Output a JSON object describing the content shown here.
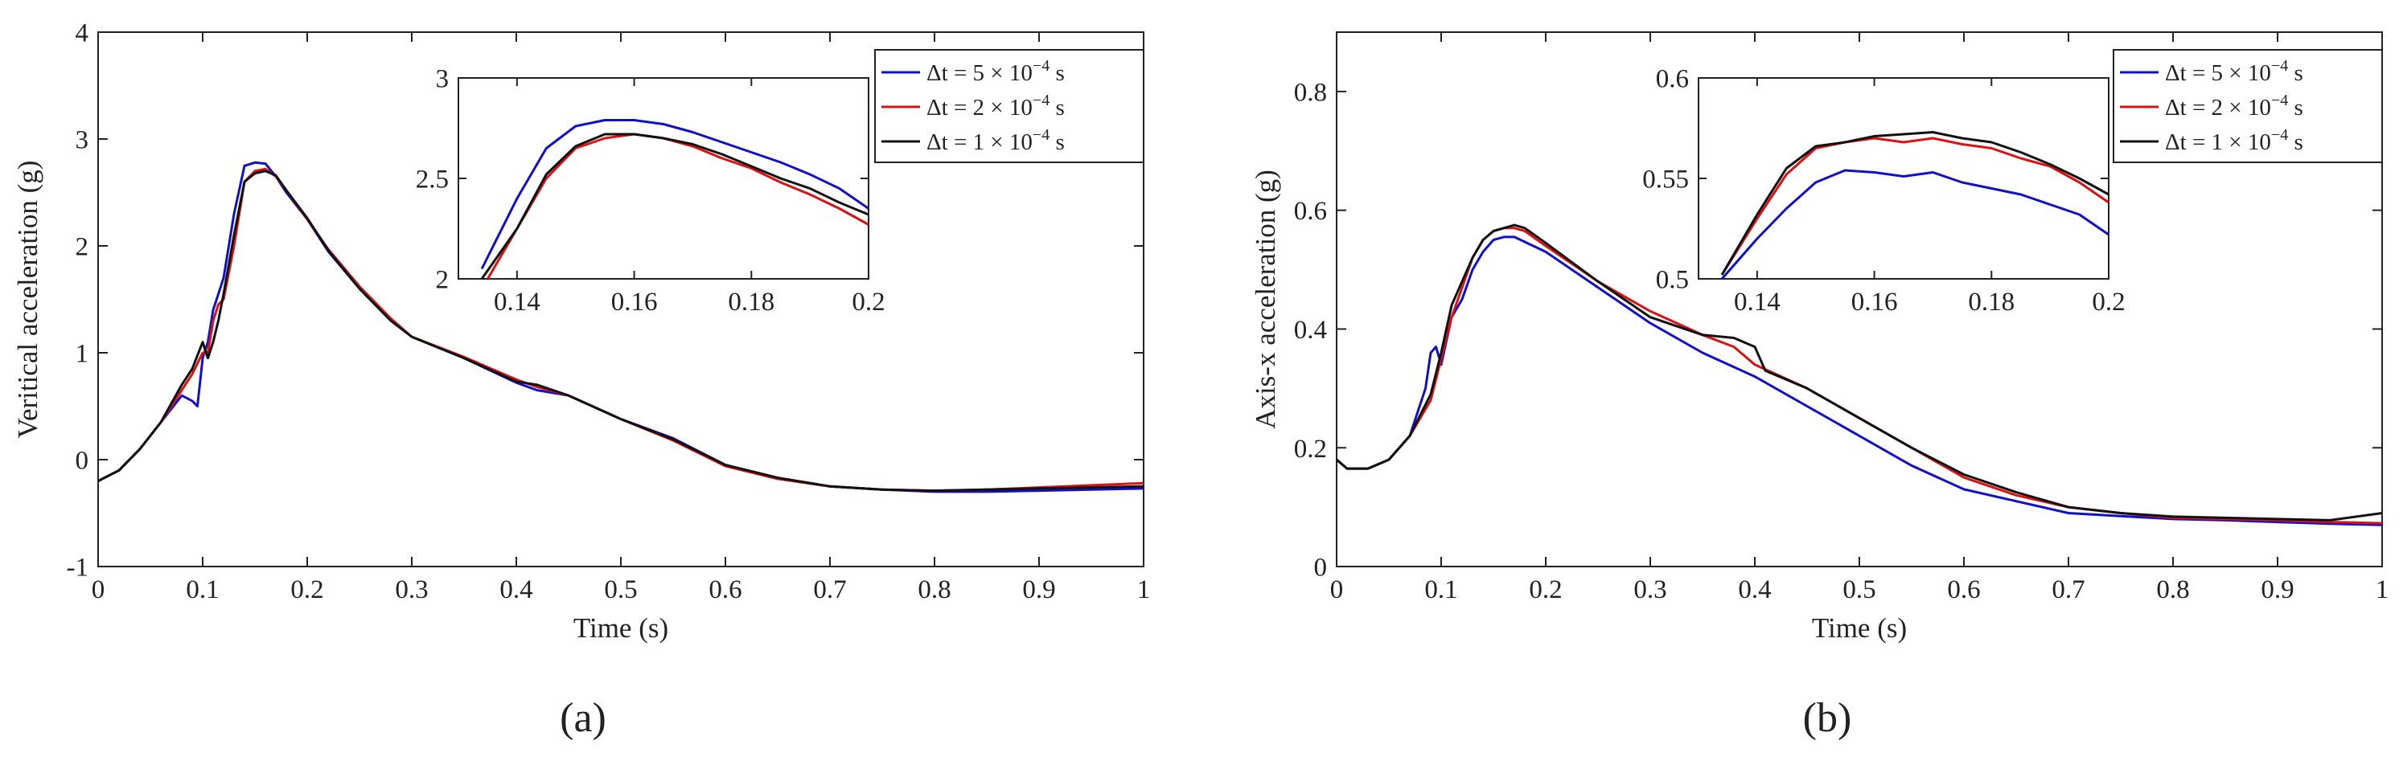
{
  "chart_data": [
    {
      "id": "a",
      "type": "line",
      "panel_label": "(a)",
      "xlabel": "Time (s)",
      "ylabel": "Veritical acceleration (g)",
      "xlim": [
        0,
        1
      ],
      "ylim": [
        -1,
        4
      ],
      "xticks": [
        0,
        0.1,
        0.2,
        0.3,
        0.4,
        0.5,
        0.6,
        0.7,
        0.8,
        0.9,
        1
      ],
      "xtick_labels": [
        "0",
        "0.1",
        "0.2",
        "0.3",
        "0.4",
        "0.5",
        "0.6",
        "0.7",
        "0.8",
        "0.9",
        "1"
      ],
      "yticks": [
        -1,
        0,
        1,
        2,
        3,
        4
      ],
      "ytick_labels": [
        "-1",
        "0",
        "1",
        "2",
        "3",
        "4"
      ],
      "grid": false,
      "legend_position": "top-right",
      "series": [
        {
          "name": "Δt = 5 × 10⁻⁴ s",
          "legend": {
            "pre": "Δt = 5 × 10",
            "sup": "−4",
            "post": " s"
          },
          "color": "#1010cc",
          "x": [
            0,
            0.02,
            0.04,
            0.06,
            0.08,
            0.09,
            0.095,
            0.1,
            0.105,
            0.11,
            0.12,
            0.13,
            0.14,
            0.15,
            0.16,
            0.17,
            0.18,
            0.2,
            0.22,
            0.25,
            0.28,
            0.3,
            0.35,
            0.4,
            0.42,
            0.45,
            0.5,
            0.55,
            0.6,
            0.65,
            0.7,
            0.75,
            0.8,
            0.85,
            0.9,
            0.95,
            1.0
          ],
          "y": [
            -0.2,
            -0.1,
            0.1,
            0.35,
            0.6,
            0.55,
            0.5,
            0.95,
            1.1,
            1.4,
            1.7,
            2.3,
            2.75,
            2.78,
            2.77,
            2.65,
            2.5,
            2.25,
            1.95,
            1.6,
            1.3,
            1.15,
            0.95,
            0.72,
            0.65,
            0.6,
            0.38,
            0.2,
            -0.05,
            -0.17,
            -0.25,
            -0.28,
            -0.3,
            -0.3,
            -0.29,
            -0.28,
            -0.27
          ]
        },
        {
          "name": "Δt = 2 × 10⁻⁴ s",
          "legend": {
            "pre": "Δt = 2 × 10",
            "sup": "−4",
            "post": " s"
          },
          "color": "#dd1111",
          "x": [
            0,
            0.02,
            0.04,
            0.06,
            0.08,
            0.09,
            0.1,
            0.105,
            0.11,
            0.115,
            0.12,
            0.13,
            0.14,
            0.15,
            0.16,
            0.17,
            0.18,
            0.2,
            0.22,
            0.25,
            0.28,
            0.3,
            0.35,
            0.4,
            0.42,
            0.45,
            0.5,
            0.55,
            0.6,
            0.65,
            0.7,
            0.75,
            0.8,
            0.85,
            0.9,
            0.95,
            1.0
          ],
          "y": [
            -0.2,
            -0.1,
            0.1,
            0.35,
            0.65,
            0.8,
            1.0,
            1.0,
            1.3,
            1.45,
            1.5,
            2.0,
            2.6,
            2.7,
            2.72,
            2.65,
            2.52,
            2.25,
            1.97,
            1.62,
            1.32,
            1.15,
            0.96,
            0.75,
            0.68,
            0.6,
            0.38,
            0.18,
            -0.06,
            -0.18,
            -0.25,
            -0.28,
            -0.29,
            -0.28,
            -0.26,
            -0.24,
            -0.22
          ]
        },
        {
          "name": "Δt = 1 × 10⁻⁴ s",
          "legend": {
            "pre": "Δt = 1 × 10",
            "sup": "−4",
            "post": " s"
          },
          "color": "#111111",
          "x": [
            0,
            0.02,
            0.04,
            0.06,
            0.08,
            0.09,
            0.1,
            0.105,
            0.11,
            0.115,
            0.12,
            0.13,
            0.14,
            0.15,
            0.16,
            0.17,
            0.18,
            0.2,
            0.22,
            0.25,
            0.28,
            0.3,
            0.35,
            0.4,
            0.42,
            0.45,
            0.5,
            0.55,
            0.6,
            0.65,
            0.7,
            0.75,
            0.8,
            0.85,
            0.9,
            0.95,
            1.0
          ],
          "y": [
            -0.2,
            -0.1,
            0.1,
            0.35,
            0.7,
            0.85,
            1.1,
            0.95,
            1.1,
            1.3,
            1.55,
            2.1,
            2.6,
            2.68,
            2.7,
            2.66,
            2.52,
            2.26,
            1.96,
            1.6,
            1.3,
            1.15,
            0.95,
            0.73,
            0.7,
            0.6,
            0.38,
            0.19,
            -0.05,
            -0.17,
            -0.25,
            -0.28,
            -0.29,
            -0.28,
            -0.27,
            -0.26,
            -0.25
          ]
        }
      ],
      "inset": {
        "xlim": [
          0.13,
          0.2
        ],
        "ylim": [
          2,
          3
        ],
        "xticks": [
          0.14,
          0.16,
          0.18,
          0.2
        ],
        "xtick_labels": [
          "0.14",
          "0.16",
          "0.18",
          "0.2"
        ],
        "yticks": [
          2,
          2.5,
          3
        ],
        "ytick_labels": [
          "2",
          "2.5",
          "3"
        ],
        "series": [
          {
            "color": "#1010cc",
            "x": [
              0.134,
              0.14,
              0.145,
              0.15,
              0.155,
              0.16,
              0.165,
              0.17,
              0.175,
              0.18,
              0.185,
              0.19,
              0.195,
              0.2
            ],
            "y": [
              2.05,
              2.4,
              2.65,
              2.76,
              2.79,
              2.79,
              2.77,
              2.73,
              2.68,
              2.63,
              2.58,
              2.52,
              2.45,
              2.35
            ]
          },
          {
            "color": "#dd1111",
            "x": [
              0.135,
              0.14,
              0.145,
              0.15,
              0.155,
              0.16,
              0.165,
              0.17,
              0.175,
              0.18,
              0.185,
              0.19,
              0.195,
              0.2
            ],
            "y": [
              2.0,
              2.25,
              2.5,
              2.65,
              2.7,
              2.72,
              2.7,
              2.66,
              2.6,
              2.55,
              2.48,
              2.42,
              2.35,
              2.27
            ]
          },
          {
            "color": "#111111",
            "x": [
              0.134,
              0.14,
              0.145,
              0.15,
              0.155,
              0.16,
              0.165,
              0.17,
              0.175,
              0.18,
              0.185,
              0.19,
              0.195,
              0.2
            ],
            "y": [
              2.0,
              2.25,
              2.52,
              2.66,
              2.72,
              2.72,
              2.7,
              2.67,
              2.62,
              2.56,
              2.5,
              2.45,
              2.38,
              2.32
            ]
          }
        ]
      }
    },
    {
      "id": "b",
      "type": "line",
      "panel_label": "(b)",
      "xlabel": "Time (s)",
      "ylabel": "Axis-x acceleration (g)",
      "xlim": [
        0,
        1
      ],
      "ylim": [
        0,
        0.9
      ],
      "xticks": [
        0,
        0.1,
        0.2,
        0.3,
        0.4,
        0.5,
        0.6,
        0.7,
        0.8,
        0.9,
        1
      ],
      "xtick_labels": [
        "0",
        "0.1",
        "0.2",
        "0.3",
        "0.4",
        "0.5",
        "0.6",
        "0.7",
        "0.8",
        "0.9",
        "1"
      ],
      "yticks": [
        0,
        0.2,
        0.4,
        0.6,
        0.8
      ],
      "ytick_labels": [
        "0",
        "0.2",
        "0.4",
        "0.6",
        "0.8"
      ],
      "grid": false,
      "legend_position": "top-right",
      "series": [
        {
          "name": "Δt = 5 × 10⁻⁴ s",
          "legend": {
            "pre": "Δt = 5 × 10",
            "sup": "−4",
            "post": " s"
          },
          "color": "#1010cc",
          "x": [
            0,
            0.01,
            0.03,
            0.05,
            0.07,
            0.085,
            0.09,
            0.095,
            0.1,
            0.11,
            0.12,
            0.13,
            0.14,
            0.15,
            0.16,
            0.17,
            0.2,
            0.25,
            0.3,
            0.35,
            0.4,
            0.45,
            0.5,
            0.55,
            0.6,
            0.65,
            0.7,
            0.75,
            0.8,
            0.85,
            0.9,
            0.95,
            1.0
          ],
          "y": [
            0.18,
            0.165,
            0.165,
            0.18,
            0.22,
            0.3,
            0.36,
            0.37,
            0.34,
            0.42,
            0.45,
            0.5,
            0.53,
            0.55,
            0.555,
            0.555,
            0.53,
            0.47,
            0.41,
            0.36,
            0.32,
            0.27,
            0.22,
            0.17,
            0.13,
            0.11,
            0.09,
            0.085,
            0.08,
            0.078,
            0.075,
            0.072,
            0.07
          ]
        },
        {
          "name": "Δt = 2 × 10⁻⁴ s",
          "legend": {
            "pre": "Δt = 2 × 10",
            "sup": "−4",
            "post": " s"
          },
          "color": "#dd1111",
          "x": [
            0,
            0.01,
            0.03,
            0.05,
            0.07,
            0.09,
            0.1,
            0.11,
            0.12,
            0.13,
            0.14,
            0.15,
            0.16,
            0.17,
            0.18,
            0.2,
            0.25,
            0.3,
            0.35,
            0.38,
            0.4,
            0.45,
            0.5,
            0.55,
            0.6,
            0.65,
            0.7,
            0.75,
            0.8,
            0.85,
            0.9,
            0.95,
            1.0
          ],
          "y": [
            0.18,
            0.165,
            0.165,
            0.18,
            0.22,
            0.28,
            0.35,
            0.42,
            0.47,
            0.52,
            0.55,
            0.565,
            0.57,
            0.57,
            0.565,
            0.54,
            0.48,
            0.43,
            0.39,
            0.37,
            0.34,
            0.3,
            0.25,
            0.2,
            0.15,
            0.12,
            0.1,
            0.09,
            0.082,
            0.08,
            0.078,
            0.075,
            0.073
          ]
        },
        {
          "name": "Δt = 1 × 10⁻⁴ s",
          "legend": {
            "pre": "Δt = 1 × 10",
            "sup": "−4",
            "post": " s"
          },
          "color": "#111111",
          "x": [
            0,
            0.01,
            0.03,
            0.05,
            0.07,
            0.09,
            0.1,
            0.11,
            0.12,
            0.13,
            0.14,
            0.15,
            0.16,
            0.17,
            0.18,
            0.2,
            0.25,
            0.3,
            0.35,
            0.38,
            0.4,
            0.41,
            0.45,
            0.5,
            0.55,
            0.6,
            0.65,
            0.7,
            0.75,
            0.8,
            0.85,
            0.9,
            0.95,
            1.0
          ],
          "y": [
            0.18,
            0.165,
            0.165,
            0.18,
            0.22,
            0.29,
            0.36,
            0.44,
            0.48,
            0.52,
            0.55,
            0.565,
            0.57,
            0.575,
            0.57,
            0.545,
            0.48,
            0.42,
            0.39,
            0.385,
            0.37,
            0.33,
            0.3,
            0.25,
            0.2,
            0.155,
            0.125,
            0.1,
            0.09,
            0.084,
            0.082,
            0.08,
            0.078,
            0.09
          ]
        }
      ],
      "inset": {
        "xlim": [
          0.13,
          0.2
        ],
        "ylim": [
          0.5,
          0.6
        ],
        "xticks": [
          0.14,
          0.16,
          0.18,
          0.2
        ],
        "xtick_labels": [
          "0.14",
          "0.16",
          "0.18",
          "0.2"
        ],
        "yticks": [
          0.5,
          0.55,
          0.6
        ],
        "ytick_labels": [
          "0.5",
          "0.55",
          "0.6"
        ],
        "series": [
          {
            "color": "#1010cc",
            "x": [
              0.134,
              0.14,
              0.145,
              0.15,
              0.155,
              0.16,
              0.165,
              0.17,
              0.175,
              0.18,
              0.185,
              0.19,
              0.195,
              0.2
            ],
            "y": [
              0.5,
              0.52,
              0.535,
              0.548,
              0.554,
              0.553,
              0.551,
              0.553,
              0.548,
              0.545,
              0.542,
              0.537,
              0.532,
              0.522
            ]
          },
          {
            "color": "#dd1111",
            "x": [
              0.134,
              0.14,
              0.145,
              0.15,
              0.155,
              0.16,
              0.165,
              0.17,
              0.175,
              0.18,
              0.185,
              0.19,
              0.195,
              0.2
            ],
            "y": [
              0.502,
              0.53,
              0.552,
              0.565,
              0.568,
              0.57,
              0.568,
              0.57,
              0.567,
              0.565,
              0.56,
              0.556,
              0.548,
              0.538
            ]
          },
          {
            "color": "#111111",
            "x": [
              0.134,
              0.14,
              0.145,
              0.15,
              0.155,
              0.16,
              0.165,
              0.17,
              0.175,
              0.18,
              0.185,
              0.19,
              0.195,
              0.2
            ],
            "y": [
              0.502,
              0.532,
              0.555,
              0.566,
              0.568,
              0.571,
              0.572,
              0.573,
              0.57,
              0.568,
              0.563,
              0.557,
              0.55,
              0.542
            ]
          }
        ]
      }
    }
  ]
}
